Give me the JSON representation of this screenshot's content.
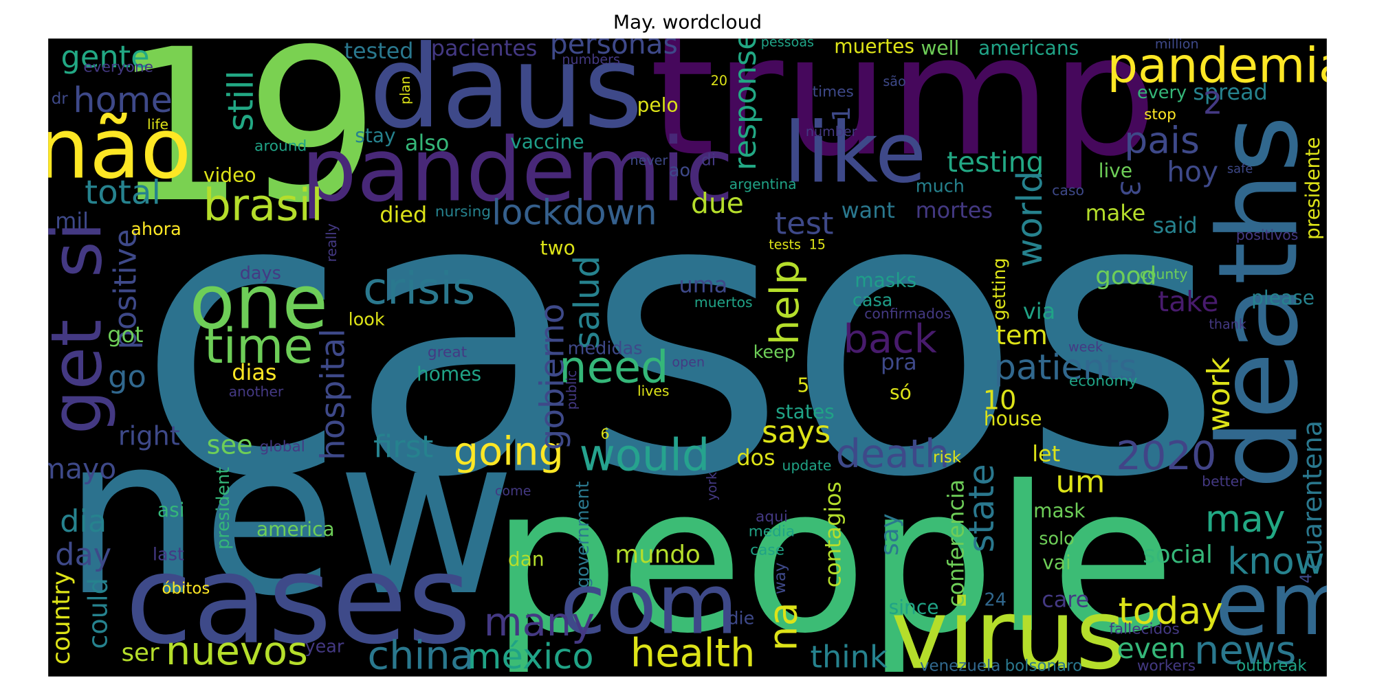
{
  "chart_data": {
    "type": "wordcloud",
    "title": "May. wordcloud",
    "background": "#000000",
    "words": [
      {
        "text": "casos",
        "color": "#2c728e"
      },
      {
        "text": "people",
        "color": "#3cbc75"
      },
      {
        "text": "new",
        "color": "#2c728e"
      },
      {
        "text": "trump",
        "color": "#46085c"
      },
      {
        "text": "19",
        "color": "#7ad151"
      },
      {
        "text": "daus",
        "color": "#3e4989"
      },
      {
        "text": "deaths",
        "color": "#31688e"
      },
      {
        "text": "cases",
        "color": "#3e4a89"
      },
      {
        "text": "virus",
        "color": "#b5de2b"
      },
      {
        "text": "pandemic",
        "color": "#482878"
      },
      {
        "text": "não",
        "color": "#fde725"
      },
      {
        "text": "like",
        "color": "#3e4989"
      },
      {
        "text": "one",
        "color": "#6ece58"
      },
      {
        "text": "get",
        "color": "#443983"
      },
      {
        "text": "si",
        "color": "#443983"
      },
      {
        "text": "em",
        "color": "#31688e"
      },
      {
        "text": "com",
        "color": "#3e4989"
      },
      {
        "text": "pandemia",
        "color": "#fde725"
      },
      {
        "text": "brasil",
        "color": "#b5de2b"
      },
      {
        "text": "time",
        "color": "#6ece58"
      },
      {
        "text": "crisis",
        "color": "#2a788e"
      },
      {
        "text": "lockdown",
        "color": "#35608d"
      },
      {
        "text": "need",
        "color": "#35b779"
      },
      {
        "text": "would",
        "color": "#26a38e"
      },
      {
        "text": "going",
        "color": "#fde725"
      },
      {
        "text": "back",
        "color": "#481b6d"
      },
      {
        "text": "death",
        "color": "#3e4989"
      },
      {
        "text": "2020",
        "color": "#414487"
      },
      {
        "text": "health",
        "color": "#dde318"
      },
      {
        "text": "china",
        "color": "#2a788e"
      },
      {
        "text": "nuevos",
        "color": "#b5de2b"
      },
      {
        "text": "many",
        "color": "#443983"
      },
      {
        "text": "méxico",
        "color": "#20a386"
      },
      {
        "text": "news",
        "color": "#2a788e"
      },
      {
        "text": "today",
        "color": "#dde318"
      },
      {
        "text": "know",
        "color": "#26828e"
      },
      {
        "text": "may",
        "color": "#22a884"
      },
      {
        "text": "pais",
        "color": "#3e4989"
      },
      {
        "text": "patients",
        "color": "#31688e"
      },
      {
        "text": "testing",
        "color": "#22a884"
      },
      {
        "text": "total",
        "color": "#26828e"
      },
      {
        "text": "home",
        "color": "#3e4989"
      },
      {
        "text": "gente",
        "color": "#22a884"
      },
      {
        "text": "personas",
        "color": "#3e4989"
      },
      {
        "text": "pacientes",
        "color": "#443983"
      },
      {
        "text": "tested",
        "color": "#2a788e"
      },
      {
        "text": "still",
        "color": "#22a884"
      },
      {
        "text": "response",
        "color": "#22a884"
      },
      {
        "text": "world",
        "color": "#26828e"
      },
      {
        "text": "help",
        "color": "#b5de2b"
      },
      {
        "text": "salud",
        "color": "#26828e"
      },
      {
        "text": "gobierno",
        "color": "#3e4989"
      },
      {
        "text": "hospital",
        "color": "#3e4989"
      },
      {
        "text": "positive",
        "color": "#3e4989"
      },
      {
        "text": "na",
        "color": "#dde318"
      },
      {
        "text": "state",
        "color": "#2a788e"
      },
      {
        "text": "work",
        "color": "#dde318"
      },
      {
        "text": "cuarentena",
        "color": "#2a788e"
      },
      {
        "text": "presidente",
        "color": "#dde318"
      },
      {
        "text": "country",
        "color": "#dde318"
      },
      {
        "text": "could",
        "color": "#26828e"
      },
      {
        "text": "says",
        "color": "#dde318"
      },
      {
        "text": "first",
        "color": "#26828e"
      },
      {
        "text": "see",
        "color": "#6ece58"
      },
      {
        "text": "right",
        "color": "#3e4989"
      },
      {
        "text": "mayo",
        "color": "#3e4989"
      },
      {
        "text": "dia",
        "color": "#26828e"
      },
      {
        "text": "day",
        "color": "#3e4989"
      },
      {
        "text": "go",
        "color": "#31688e"
      },
      {
        "text": "got",
        "color": "#6ece58"
      },
      {
        "text": "mil",
        "color": "#3e4989"
      },
      {
        "text": "ahora",
        "color": "#fde725"
      },
      {
        "text": "video",
        "color": "#dde318"
      },
      {
        "text": "dias",
        "color": "#fde725"
      },
      {
        "text": "also",
        "color": "#35b779"
      },
      {
        "text": "stay",
        "color": "#26828e"
      },
      {
        "text": "vaccine",
        "color": "#1f9e89"
      },
      {
        "text": "around",
        "color": "#20a386"
      },
      {
        "text": "life",
        "color": "#dde318"
      },
      {
        "text": "dr",
        "color": "#3e4989"
      },
      {
        "text": "everyone",
        "color": "#443983"
      },
      {
        "text": "died",
        "color": "#dde318"
      },
      {
        "text": "nursing",
        "color": "#26828e"
      },
      {
        "text": "two",
        "color": "#dde318"
      },
      {
        "text": "due",
        "color": "#b5de2b"
      },
      {
        "text": "test",
        "color": "#3e4989"
      },
      {
        "text": "want",
        "color": "#2a788e"
      },
      {
        "text": "mortes",
        "color": "#443983"
      },
      {
        "text": "uma",
        "color": "#3e4989"
      },
      {
        "text": "medidas",
        "color": "#3e4989"
      },
      {
        "text": "homes",
        "color": "#20a386"
      },
      {
        "text": "days",
        "color": "#443983"
      },
      {
        "text": "look",
        "color": "#dde318"
      },
      {
        "text": "great",
        "color": "#443983"
      },
      {
        "text": "another",
        "color": "#443983"
      },
      {
        "text": "lives",
        "color": "#dde318"
      },
      {
        "text": "open",
        "color": "#443983"
      },
      {
        "text": "muertos",
        "color": "#20a386"
      },
      {
        "text": "keep",
        "color": "#6ece58"
      },
      {
        "text": "masks",
        "color": "#1f9e89"
      },
      {
        "text": "casa",
        "color": "#1f9e89"
      },
      {
        "text": "confirmados",
        "color": "#443983"
      },
      {
        "text": "pra",
        "color": "#3e4989"
      },
      {
        "text": "só",
        "color": "#dde318"
      },
      {
        "text": "5",
        "color": "#dde318"
      },
      {
        "text": "states",
        "color": "#20a386"
      },
      {
        "text": "tem",
        "color": "#dde318"
      },
      {
        "text": "via",
        "color": "#20a386"
      },
      {
        "text": "getting",
        "color": "#dde318"
      },
      {
        "text": "10",
        "color": "#dde318"
      },
      {
        "text": "house",
        "color": "#dde318"
      },
      {
        "text": "let",
        "color": "#dde318"
      },
      {
        "text": "um",
        "color": "#dde318"
      },
      {
        "text": "dos",
        "color": "#dde318"
      },
      {
        "text": "update",
        "color": "#20a386"
      },
      {
        "text": "risk",
        "color": "#dde318"
      },
      {
        "text": "mask",
        "color": "#6ece58"
      },
      {
        "text": "vai",
        "color": "#6ece58"
      },
      {
        "text": "solo",
        "color": "#6ece58"
      },
      {
        "text": "say",
        "color": "#2a788e"
      },
      {
        "text": "conferencia",
        "color": "#6ece58"
      },
      {
        "text": "contagios",
        "color": "#b5de2b"
      },
      {
        "text": "government",
        "color": "#2a788e"
      },
      {
        "text": "mundo",
        "color": "#b5de2b"
      },
      {
        "text": "dan",
        "color": "#b5de2b"
      },
      {
        "text": "america",
        "color": "#6ece58"
      },
      {
        "text": "president",
        "color": "#35b779"
      },
      {
        "text": "asi",
        "color": "#35b779"
      },
      {
        "text": "last",
        "color": "#443983"
      },
      {
        "text": "óbitos",
        "color": "#fde725"
      },
      {
        "text": "ser",
        "color": "#b5de2b"
      },
      {
        "text": "year",
        "color": "#443983"
      },
      {
        "text": "die",
        "color": "#3e4989"
      },
      {
        "text": "way",
        "color": "#3e4989"
      },
      {
        "text": "aqui",
        "color": "#443983"
      },
      {
        "text": "media",
        "color": "#20a386"
      },
      {
        "text": "case",
        "color": "#20a386"
      },
      {
        "text": "york",
        "color": "#443983"
      },
      {
        "text": "come",
        "color": "#443983"
      },
      {
        "text": "global",
        "color": "#443983"
      },
      {
        "text": "public",
        "color": "#443983"
      },
      {
        "text": "6",
        "color": "#dde318"
      },
      {
        "text": "since",
        "color": "#20a386"
      },
      {
        "text": "24",
        "color": "#31688e"
      },
      {
        "text": "care",
        "color": "#443983"
      },
      {
        "text": "think",
        "color": "#26828e"
      },
      {
        "text": "even",
        "color": "#35b779"
      },
      {
        "text": "social",
        "color": "#35b779"
      },
      {
        "text": "good",
        "color": "#6ece58"
      },
      {
        "text": "take",
        "color": "#481b6d"
      },
      {
        "text": "said",
        "color": "#26828e"
      },
      {
        "text": "hoy",
        "color": "#3e4989"
      },
      {
        "text": "spread",
        "color": "#26828e"
      },
      {
        "text": "every",
        "color": "#35b779"
      },
      {
        "text": "stop",
        "color": "#fde725"
      },
      {
        "text": "2",
        "color": "#443983"
      },
      {
        "text": "3",
        "color": "#3e4989"
      },
      {
        "text": "live",
        "color": "#6ece58"
      },
      {
        "text": "make",
        "color": "#b5de2b"
      },
      {
        "text": "much",
        "color": "#26828e"
      },
      {
        "text": "caso",
        "color": "#3e4989"
      },
      {
        "text": "please",
        "color": "#26828e"
      },
      {
        "text": "thank",
        "color": "#443983"
      },
      {
        "text": "week",
        "color": "#443983"
      },
      {
        "text": "economy",
        "color": "#20a386"
      },
      {
        "text": "county",
        "color": "#6ece58"
      },
      {
        "text": "positivos",
        "color": "#443983"
      },
      {
        "text": "safe",
        "color": "#3e4989"
      },
      {
        "text": "better",
        "color": "#443983"
      },
      {
        "text": "fallecidos",
        "color": "#443983"
      },
      {
        "text": "workers",
        "color": "#443983"
      },
      {
        "text": "outbreak",
        "color": "#20a386"
      },
      {
        "text": "venezuela",
        "color": "#31688e"
      },
      {
        "text": "bolsonaro",
        "color": "#2a788e"
      },
      {
        "text": "4",
        "color": "#3e4989"
      },
      {
        "text": "tests",
        "color": "#dde318"
      },
      {
        "text": "15",
        "color": "#dde318"
      },
      {
        "text": "argentina",
        "color": "#20a386"
      },
      {
        "text": "di",
        "color": "#443983"
      },
      {
        "text": "ao",
        "color": "#3e4989"
      },
      {
        "text": "never",
        "color": "#3e4989"
      },
      {
        "text": "pelo",
        "color": "#dde318"
      },
      {
        "text": "times",
        "color": "#3e4989"
      },
      {
        "text": "são",
        "color": "#3e4989"
      },
      {
        "text": "number",
        "color": "#443983"
      },
      {
        "text": "1",
        "color": "#3e4989"
      },
      {
        "text": "pessoas",
        "color": "#20a386"
      },
      {
        "text": "muertes",
        "color": "#dde318"
      },
      {
        "text": "well",
        "color": "#6ece58"
      },
      {
        "text": "americans",
        "color": "#20a386"
      },
      {
        "text": "million",
        "color": "#3e4989"
      },
      {
        "text": "20",
        "color": "#dde318"
      },
      {
        "text": "plan",
        "color": "#dde318"
      },
      {
        "text": "numbers",
        "color": "#443983"
      },
      {
        "text": "really",
        "color": "#443983"
      }
    ]
  }
}
